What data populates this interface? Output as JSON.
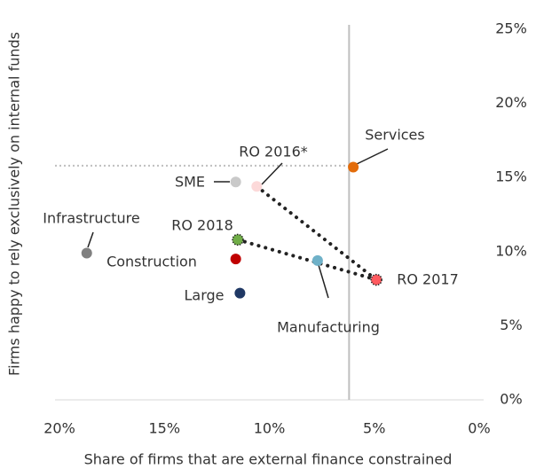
{
  "chart_data": {
    "type": "scatter",
    "x_label": "Share of firms that are external finance constrained",
    "y_label": "Firms happy to rely exclusively on internal funds",
    "xlim": [
      20,
      0
    ],
    "ylim": [
      0,
      25
    ],
    "xticks": [
      {
        "value": 20,
        "label": "20%"
      },
      {
        "value": 15,
        "label": "15%"
      },
      {
        "value": 10,
        "label": "10%"
      },
      {
        "value": 5,
        "label": "5%"
      },
      {
        "value": 0,
        "label": "0%"
      }
    ],
    "yticks": [
      {
        "value": 0,
        "label": "0%"
      },
      {
        "value": 5,
        "label": "5%"
      },
      {
        "value": 10,
        "label": "10%"
      },
      {
        "value": 15,
        "label": "15%"
      },
      {
        "value": 20,
        "label": "20%"
      },
      {
        "value": 25,
        "label": "25%"
      }
    ],
    "reference_lines": {
      "x": 6.2,
      "y": 15.8
    },
    "points": [
      {
        "name": "Services",
        "x": 6.0,
        "y": 15.7,
        "color": "#e36c0a"
      },
      {
        "name": "SME",
        "x": 11.6,
        "y": 14.7,
        "color": "#c9c9c9"
      },
      {
        "name": "RO 2016*",
        "x": 10.6,
        "y": 14.4,
        "color": "#fcd9d9"
      },
      {
        "name": "Infrastructure",
        "x": 18.7,
        "y": 9.9,
        "color": "#808080"
      },
      {
        "name": "RO 2018",
        "x": 11.5,
        "y": 10.8,
        "color": "#70ad47"
      },
      {
        "name": "Construction",
        "x": 11.6,
        "y": 9.5,
        "color": "#c00000"
      },
      {
        "name": "Large",
        "x": 11.4,
        "y": 7.2,
        "color": "#1f3864"
      },
      {
        "name": "Manufacturing",
        "x": 7.7,
        "y": 9.4,
        "color": "#6fb1c8"
      },
      {
        "name": "RO 2017",
        "x": 4.9,
        "y": 8.1,
        "color": "#ff5a5f"
      }
    ]
  }
}
